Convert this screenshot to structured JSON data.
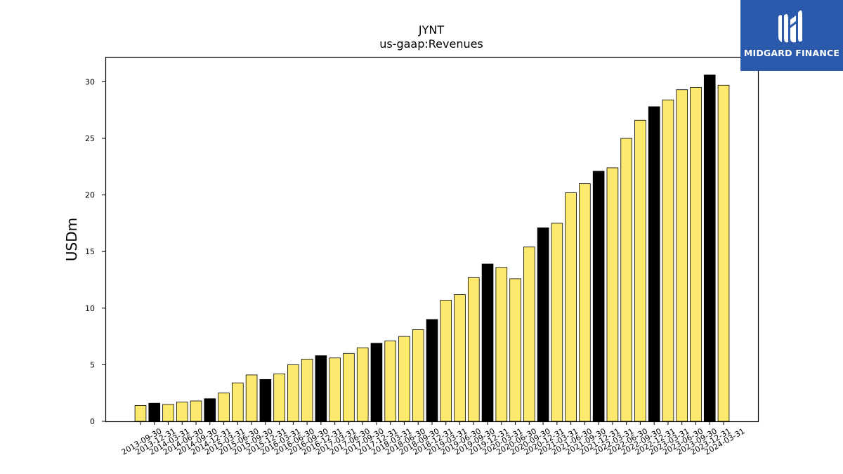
{
  "brand": {
    "name": "MIDGARD FINANCE",
    "color": "#2b5aad"
  },
  "chart_data": {
    "type": "bar",
    "title": "JYNT",
    "subtitle": "us-gaap:Revenues",
    "ylabel": "USDm",
    "xlabel": "",
    "ylim": [
      0,
      32.2
    ],
    "yticks": [
      0,
      5,
      10,
      15,
      20,
      25,
      30
    ],
    "grid": false,
    "colors": {
      "quarter": "#fde96e",
      "year_end": "#000000",
      "edge": "#000000"
    },
    "categories": [
      "2013-09-30",
      "2013-12-31",
      "2014-03-31",
      "2014-06-30",
      "2014-09-30",
      "2014-12-31",
      "2015-03-31",
      "2015-06-30",
      "2015-09-30",
      "2015-12-31",
      "2016-03-31",
      "2016-06-30",
      "2016-09-30",
      "2016-12-31",
      "2017-03-31",
      "2017-06-30",
      "2017-09-30",
      "2017-12-31",
      "2018-03-31",
      "2018-06-30",
      "2018-09-30",
      "2018-12-31",
      "2019-03-31",
      "2019-06-30",
      "2019-09-30",
      "2019-12-31",
      "2020-03-31",
      "2020-06-30",
      "2020-09-30",
      "2020-12-31",
      "2021-03-31",
      "2021-06-30",
      "2021-09-30",
      "2021-12-31",
      "2022-03-31",
      "2022-06-30",
      "2022-09-30",
      "2022-12-31",
      "2023-03-31",
      "2023-06-30",
      "2023-09-30",
      "2023-12-31",
      "2024-03-31"
    ],
    "values": [
      1.4,
      1.6,
      1.5,
      1.7,
      1.8,
      2.0,
      2.5,
      3.4,
      4.1,
      3.7,
      4.2,
      5.0,
      5.5,
      5.8,
      5.6,
      6.0,
      6.5,
      6.9,
      7.1,
      7.5,
      8.1,
      9.0,
      10.7,
      11.2,
      12.7,
      13.9,
      13.6,
      12.6,
      15.4,
      17.1,
      17.5,
      20.2,
      21.0,
      22.1,
      22.4,
      25.0,
      26.6,
      27.8,
      28.4,
      29.3,
      29.5,
      30.6,
      29.7
    ],
    "highlight": [
      false,
      true,
      false,
      false,
      false,
      true,
      false,
      false,
      false,
      true,
      false,
      false,
      false,
      true,
      false,
      false,
      false,
      true,
      false,
      false,
      false,
      true,
      false,
      false,
      false,
      true,
      false,
      false,
      false,
      true,
      false,
      false,
      false,
      true,
      false,
      false,
      false,
      true,
      false,
      false,
      false,
      true,
      false
    ]
  }
}
